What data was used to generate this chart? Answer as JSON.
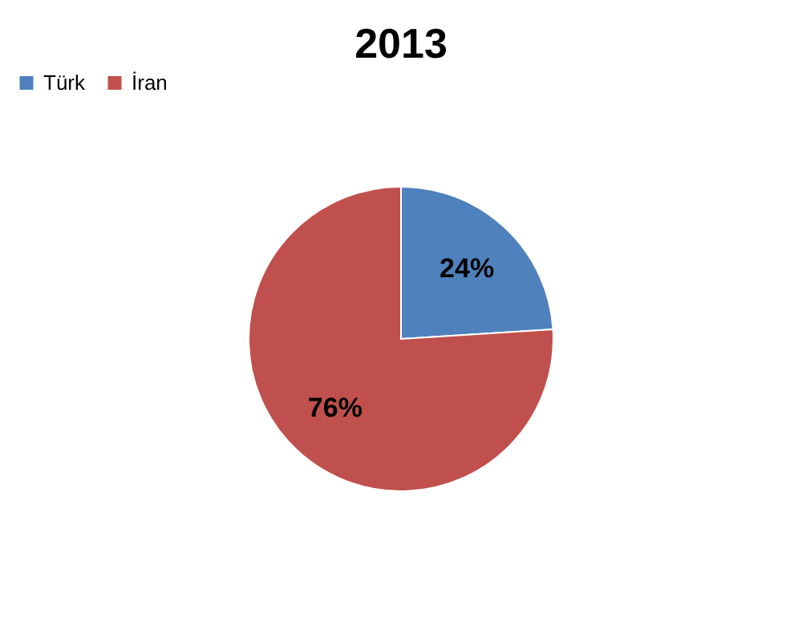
{
  "chart_data": {
    "type": "pie",
    "title": "2013",
    "categories": [
      "Türk",
      "İran"
    ],
    "values": [
      24,
      76
    ],
    "colors": [
      "#4f81bd",
      "#c0504d"
    ],
    "value_labels": [
      "24%",
      "76%"
    ],
    "legend": "top"
  }
}
